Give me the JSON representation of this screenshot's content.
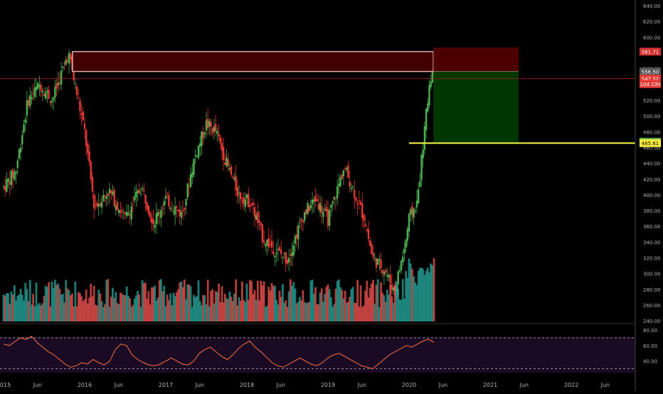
{
  "chart_data": [
    {
      "type": "candlestick",
      "title": "",
      "x_tick_labels": [
        "2015",
        "Jun",
        "2016",
        "Jun",
        "2017",
        "Jun",
        "2018",
        "Jun",
        "2019",
        "Jun",
        "2020",
        "Jun",
        "2021",
        "Jun",
        "2022",
        "Jun"
      ],
      "y_tick_labels": [
        "640.00",
        "620.00",
        "600.00",
        "580.00",
        "560.00",
        "540.00",
        "520.00",
        "500.00",
        "480.00",
        "460.00",
        "440.00",
        "420.00",
        "400.00",
        "380.00",
        "360.00",
        "340.00",
        "320.00",
        "300.00",
        "280.00",
        "260.00",
        "240.00"
      ],
      "ylim": [
        240,
        640
      ],
      "price_path": [
        {
          "t": 2015.0,
          "v": 410
        },
        {
          "t": 2015.15,
          "v": 430
        },
        {
          "t": 2015.3,
          "v": 520
        },
        {
          "t": 2015.45,
          "v": 540
        },
        {
          "t": 2015.6,
          "v": 520
        },
        {
          "t": 2015.8,
          "v": 580
        },
        {
          "t": 2016.0,
          "v": 480
        },
        {
          "t": 2016.12,
          "v": 385
        },
        {
          "t": 2016.3,
          "v": 405
        },
        {
          "t": 2016.5,
          "v": 370
        },
        {
          "t": 2016.7,
          "v": 410
        },
        {
          "t": 2016.85,
          "v": 365
        },
        {
          "t": 2017.0,
          "v": 395
        },
        {
          "t": 2017.2,
          "v": 375
        },
        {
          "t": 2017.35,
          "v": 445
        },
        {
          "t": 2017.5,
          "v": 490
        },
        {
          "t": 2017.62,
          "v": 480
        },
        {
          "t": 2017.75,
          "v": 440
        },
        {
          "t": 2017.9,
          "v": 400
        },
        {
          "t": 2018.05,
          "v": 390
        },
        {
          "t": 2018.2,
          "v": 345
        },
        {
          "t": 2018.35,
          "v": 330
        },
        {
          "t": 2018.5,
          "v": 318
        },
        {
          "t": 2018.7,
          "v": 375
        },
        {
          "t": 2018.85,
          "v": 395
        },
        {
          "t": 2019.0,
          "v": 368
        },
        {
          "t": 2019.2,
          "v": 435
        },
        {
          "t": 2019.3,
          "v": 410
        },
        {
          "t": 2019.45,
          "v": 370
        },
        {
          "t": 2019.55,
          "v": 320
        },
        {
          "t": 2019.7,
          "v": 305
        },
        {
          "t": 2019.82,
          "v": 278
        },
        {
          "t": 2019.95,
          "v": 335
        },
        {
          "t": 2020.0,
          "v": 370
        },
        {
          "t": 2020.1,
          "v": 390
        },
        {
          "t": 2020.18,
          "v": 470
        },
        {
          "t": 2020.26,
          "v": 550
        },
        {
          "t": 2020.31,
          "v": 558
        }
      ],
      "volume_bars": "schematic",
      "resistance_zone": {
        "top": 581.71,
        "bottom": 556.5,
        "from": 2015.85,
        "to": 2020.3
      },
      "short_position": {
        "entry": 556.5,
        "stop": 587,
        "target": 465.61,
        "from": 2020.3,
        "to": 2021.35
      },
      "support_line": {
        "value": 465.61,
        "from": 2020.0
      },
      "current_price_line": 547.52,
      "price_labels": [
        {
          "text": "581.71",
          "value": 581.71,
          "color": "#d32f2f"
        },
        {
          "text": "556.50",
          "value": 556.5,
          "color": "#555555"
        },
        {
          "text": "547.52",
          "value": 547.52,
          "color": "#e53935"
        },
        {
          "text": "10d 23h",
          "value": 540.5,
          "color": "#e53935"
        },
        {
          "text": "467.37",
          "value": 467.37,
          "color": "#4caf50"
        },
        {
          "text": "465.61",
          "value": 465.61,
          "color": "#ffeb3b"
        }
      ],
      "colors": {
        "up": "#4caf50",
        "down": "#e53935",
        "vol_up": "#26a69a",
        "vol_down": "#ef5350",
        "support": "#f5f542",
        "zone_fill": "#4a0000",
        "target_fill": "#003c00"
      }
    },
    {
      "type": "line",
      "indicator": "oscillator",
      "y_tick_labels": [
        "80.00",
        "60.00",
        "40.00"
      ],
      "ylim": [
        25,
        82
      ],
      "guide_levels": [
        70,
        30
      ],
      "values": [
        62,
        60,
        65,
        70,
        68,
        72,
        64,
        58,
        52,
        48,
        42,
        36,
        32,
        34,
        38,
        36,
        42,
        38,
        35,
        40,
        55,
        62,
        60,
        48,
        42,
        38,
        35,
        34,
        36,
        40,
        44,
        40,
        36,
        35,
        40,
        50,
        55,
        58,
        52,
        46,
        42,
        48,
        56,
        62,
        66,
        58,
        52,
        45,
        38,
        34,
        32,
        36,
        40,
        44,
        40,
        36,
        34,
        38,
        44,
        48,
        50,
        46,
        42,
        38,
        34,
        32,
        30,
        36,
        42,
        48,
        52,
        56,
        60,
        58,
        62,
        66,
        68,
        64
      ],
      "color": "#ff7043",
      "background": "#1a0a24"
    }
  ]
}
